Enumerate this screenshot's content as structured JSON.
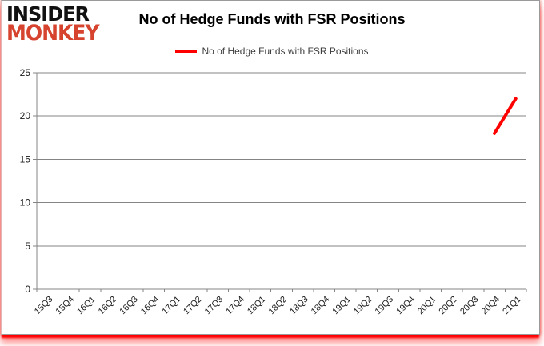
{
  "logo": {
    "line1": "INSIDER",
    "line2": "MONKEY"
  },
  "header": {
    "title": "No of Hedge Funds with FSR Positions"
  },
  "legend": {
    "label": "No of Hedge Funds with FSR Positions"
  },
  "chart_data": {
    "type": "line",
    "title": "No of Hedge Funds with FSR Positions",
    "categories": [
      "15Q3",
      "15Q4",
      "16Q1",
      "16Q2",
      "16Q3",
      "16Q4",
      "17Q1",
      "17Q2",
      "17Q3",
      "17Q4",
      "18Q1",
      "18Q2",
      "18Q3",
      "18Q4",
      "19Q1",
      "19Q2",
      "19Q3",
      "19Q4",
      "20Q1",
      "20Q2",
      "20Q3",
      "20Q4",
      "21Q1"
    ],
    "series": [
      {
        "name": "No of Hedge Funds with FSR Positions",
        "color": "#ff0000",
        "values": [
          null,
          null,
          null,
          null,
          null,
          null,
          null,
          null,
          null,
          null,
          null,
          null,
          null,
          null,
          null,
          null,
          null,
          null,
          null,
          null,
          null,
          18,
          22
        ]
      }
    ],
    "xlabel": "",
    "ylabel": "",
    "ylim": [
      0,
      25
    ],
    "yticks": [
      0,
      5,
      10,
      15,
      20,
      25
    ],
    "grid": "horizontal",
    "legend_position": "top-center"
  },
  "colors": {
    "grid": "#848484",
    "axis": "#848484",
    "tick_label": "#1a1a1a",
    "series_line": "#ff0000",
    "logo_red": "#d6432e",
    "bottom_glow": "#ff0000"
  }
}
